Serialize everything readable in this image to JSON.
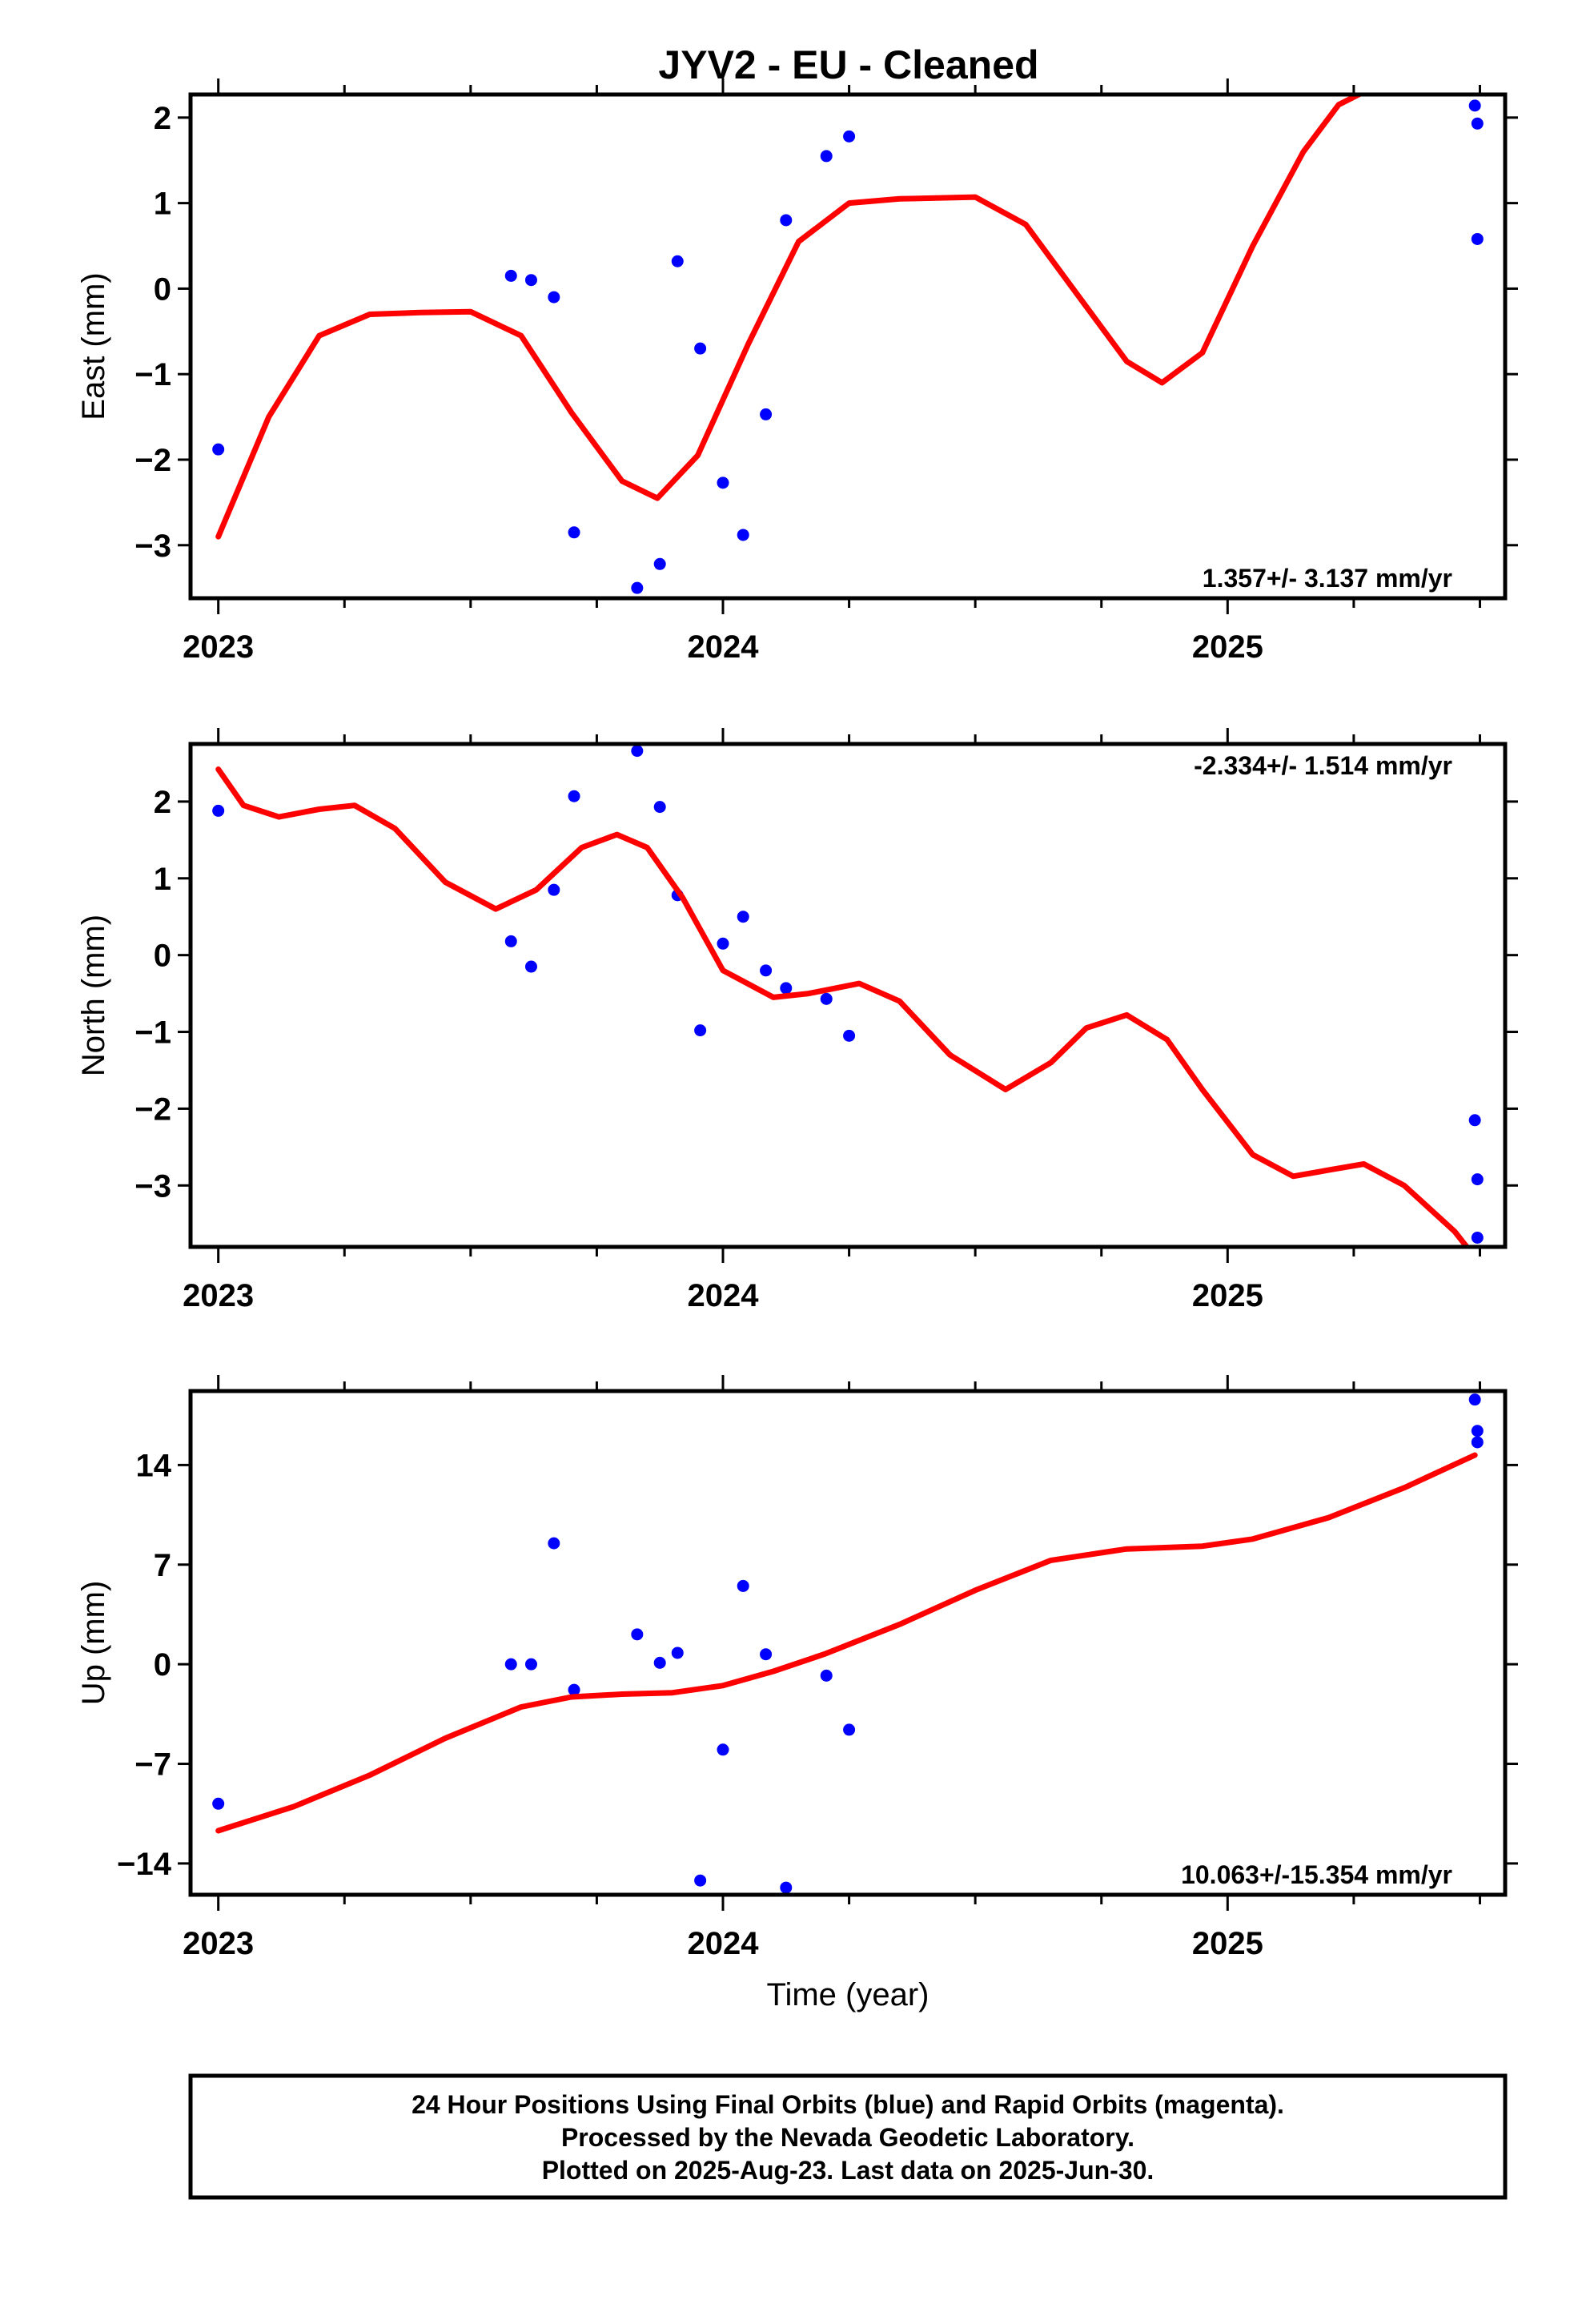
{
  "title": "JYV2  - EU - Cleaned",
  "chart_data": [
    {
      "type": "scatter",
      "ylabel": "East (mm)",
      "ylim": [
        -3.62,
        2.27
      ],
      "yticks": [
        2,
        1,
        0,
        -1,
        -2,
        -3
      ],
      "yticklabels": [
        "2",
        "1",
        "0",
        "−1",
        "−2",
        "−3"
      ],
      "xlim": [
        2022.945,
        2025.55
      ],
      "xticks": [
        2023,
        2024,
        2025
      ],
      "xticklabels": [
        "2023",
        "2024",
        "2025"
      ],
      "rate": "1.357+/- 3.137 mm/yr",
      "rate_position": "bottom-right",
      "series": [
        {
          "style": "points",
          "color": "#0000ff",
          "x": [
            2023.0,
            2023.58,
            2023.62,
            2023.665,
            2023.705,
            2023.83,
            2023.875,
            2023.91,
            2023.955,
            2024.0,
            2024.04,
            2024.085,
            2024.125,
            2024.205,
            2024.25,
            2025.49,
            2025.495,
            2025.495
          ],
          "y": [
            -1.88,
            0.15,
            0.1,
            -0.1,
            -2.85,
            -3.5,
            -3.22,
            0.32,
            -0.7,
            -2.27,
            -2.88,
            -1.47,
            0.8,
            1.55,
            1.78,
            2.14,
            1.93,
            0.58
          ]
        },
        {
          "style": "line",
          "color": "#ff0000",
          "x": [
            2023.0,
            2023.1,
            2023.2,
            2023.3,
            2023.4,
            2023.5,
            2023.6,
            2023.7,
            2023.8,
            2023.87,
            2023.95,
            2024.05,
            2024.15,
            2024.25,
            2024.35,
            2024.5,
            2024.6,
            2024.7,
            2024.8,
            2024.87,
            2024.95,
            2025.05,
            2025.15,
            2025.22,
            2025.26
          ],
          "y": [
            -2.9,
            -1.5,
            -0.55,
            -0.3,
            -0.28,
            -0.27,
            -0.55,
            -1.45,
            -2.25,
            -2.45,
            -1.95,
            -0.65,
            0.55,
            1.0,
            1.05,
            1.07,
            0.75,
            -0.05,
            -0.85,
            -1.1,
            -0.75,
            0.5,
            1.6,
            2.15,
            2.27
          ]
        }
      ]
    },
    {
      "type": "scatter",
      "ylabel": "North (mm)",
      "ylim": [
        -3.8,
        2.75
      ],
      "yticks": [
        2,
        1,
        0,
        -1,
        -2,
        -3
      ],
      "yticklabels": [
        "2",
        "1",
        "0",
        "−1",
        "−2",
        "−3"
      ],
      "xlim": [
        2022.945,
        2025.55
      ],
      "xticks": [
        2023,
        2024,
        2025
      ],
      "xticklabels": [
        "2023",
        "2024",
        "2025"
      ],
      "rate": "-2.334+/- 1.514 mm/yr",
      "rate_position": "top-right",
      "series": [
        {
          "style": "points",
          "color": "#0000ff",
          "x": [
            2023.0,
            2023.58,
            2023.62,
            2023.665,
            2023.705,
            2023.83,
            2023.875,
            2023.91,
            2023.955,
            2024.0,
            2024.04,
            2024.085,
            2024.125,
            2024.205,
            2024.25,
            2025.49,
            2025.495,
            2025.495
          ],
          "y": [
            1.88,
            0.18,
            -0.15,
            0.85,
            2.07,
            2.66,
            1.93,
            0.78,
            -0.98,
            0.15,
            0.5,
            -0.2,
            -0.43,
            -0.57,
            -1.05,
            -2.15,
            -2.92,
            -3.68
          ],
          "note": ""
        },
        {
          "style": "line",
          "color": "#ff0000",
          "x": [
            2023.0,
            2023.05,
            2023.12,
            2023.2,
            2023.27,
            2023.35,
            2023.45,
            2023.55,
            2023.63,
            2023.72,
            2023.79,
            2023.85,
            2023.92,
            2024.0,
            2024.1,
            2024.17,
            2024.27,
            2024.35,
            2024.45,
            2024.56,
            2024.65,
            2024.72,
            2024.8,
            2024.88,
            2024.95,
            2025.05,
            2025.13,
            2025.2,
            2025.27,
            2025.35,
            2025.45,
            2025.48
          ],
          "y": [
            2.42,
            1.95,
            1.8,
            1.9,
            1.95,
            1.65,
            0.95,
            0.6,
            0.85,
            1.4,
            1.57,
            1.4,
            0.75,
            -0.2,
            -0.55,
            -0.5,
            -0.37,
            -0.6,
            -1.3,
            -1.75,
            -1.4,
            -0.95,
            -0.78,
            -1.1,
            -1.75,
            -2.6,
            -2.88,
            -2.8,
            -2.72,
            -3.0,
            -3.6,
            -3.85
          ]
        }
      ]
    },
    {
      "type": "scatter",
      "ylabel": "Up (mm)",
      "ylim": [
        -16.2,
        19.2
      ],
      "yticks": [
        14,
        7,
        0,
        -7,
        -14
      ],
      "yticklabels": [
        "14",
        "7",
        "0",
        "−7",
        "−14"
      ],
      "xlim": [
        2022.945,
        2025.55
      ],
      "xticks": [
        2023,
        2024,
        2025
      ],
      "xticklabels": [
        "2023",
        "2024",
        "2025"
      ],
      "xlabel": "Time (year)",
      "rate": "10.063+/-15.354 mm/yr",
      "rate_position": "bottom-right",
      "series": [
        {
          "style": "points",
          "color": "#0000ff",
          "x": [
            2023.0,
            2023.58,
            2023.62,
            2023.665,
            2023.705,
            2023.83,
            2023.875,
            2023.91,
            2023.955,
            2024.0,
            2024.04,
            2024.085,
            2024.125,
            2024.205,
            2024.25,
            2025.49,
            2025.495,
            2025.495
          ],
          "y": [
            -9.8,
            0.0,
            0.0,
            8.5,
            -1.8,
            2.1,
            0.1,
            0.8,
            -15.2,
            -6.0,
            5.5,
            0.7,
            -15.7,
            -0.8,
            -4.6,
            18.6,
            16.4,
            15.6
          ]
        },
        {
          "style": "line",
          "color": "#ff0000",
          "x": [
            2023.0,
            2023.15,
            2023.3,
            2023.45,
            2023.6,
            2023.7,
            2023.8,
            2023.9,
            2024.0,
            2024.1,
            2024.2,
            2024.35,
            2024.5,
            2024.65,
            2024.8,
            2024.95,
            2025.05,
            2025.2,
            2025.35,
            2025.49
          ],
          "y": [
            -11.7,
            -10.0,
            -7.8,
            -5.2,
            -3.0,
            -2.3,
            -2.1,
            -2.0,
            -1.5,
            -0.5,
            0.7,
            2.8,
            5.2,
            7.3,
            8.1,
            8.3,
            8.8,
            10.3,
            12.4,
            14.7
          ]
        }
      ]
    }
  ],
  "footer": {
    "lines": [
      "24 Hour Positions Using Final Orbits (blue) and Rapid Orbits (magenta).",
      "Processed by the Nevada Geodetic Laboratory.",
      "Plotted on 2025-Aug-23. Last data on 2025-Jun-30."
    ]
  }
}
